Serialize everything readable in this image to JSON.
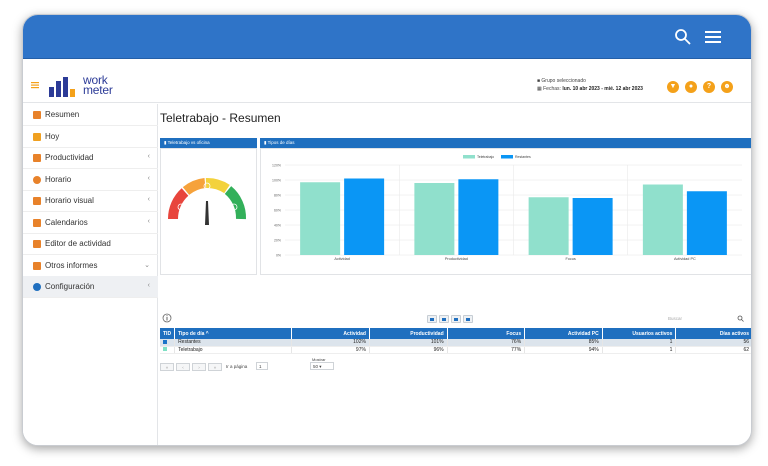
{
  "topbar": {
    "icons": [
      "search-icon",
      "menu-icon"
    ]
  },
  "app": {
    "logo_top": "work",
    "logo_bottom": "meter",
    "group_label": "Grupo seleccionado",
    "dates_label": "Fechas:",
    "dates_value": "lun. 10 abr 2023 - mié. 12 abr 2023",
    "header_icons": [
      "filter-icon",
      "bell-icon",
      "help-icon",
      "user-icon"
    ],
    "accent_color": "#f4a11a",
    "primary_color": "#1f6fbf"
  },
  "sidebar": {
    "items": [
      {
        "label": "Resumen",
        "icon": "home-icon",
        "color": "#e8822a",
        "chevron": false
      },
      {
        "label": "Hoy",
        "icon": "calendar-icon",
        "color": "#f0a020",
        "chevron": false
      },
      {
        "label": "Productividad",
        "icon": "chart-icon",
        "color": "#e8822a",
        "chevron": true
      },
      {
        "label": "Horario",
        "icon": "clock-icon",
        "color": "#e8822a",
        "chevron": true
      },
      {
        "label": "Horario visual",
        "icon": "bar-chart-icon",
        "color": "#e8822a",
        "chevron": true
      },
      {
        "label": "Calendarios",
        "icon": "calendar-icon",
        "color": "#e8822a",
        "chevron": true
      },
      {
        "label": "Editor de actividad",
        "icon": "edit-icon",
        "color": "#e8822a",
        "chevron": false
      },
      {
        "label": "Otros informes",
        "icon": "grid-icon",
        "color": "#e8822a",
        "chevron": true
      },
      {
        "label": "Configuración",
        "icon": "gear-icon",
        "color": "#1f6fbf",
        "chevron": true
      }
    ]
  },
  "page": {
    "title": "Teletrabajo - Resumen"
  },
  "gauge_panel": {
    "title": "Teletrabajo vs oficina"
  },
  "chart_data": {
    "type": "bar",
    "title": "Tipos de días",
    "categories": [
      "Actividad",
      "Productividad",
      "Focus",
      "Actividad PC"
    ],
    "series": [
      {
        "name": "Teletrabajo",
        "color": "#90e0cc",
        "values": [
          97,
          96,
          77,
          94
        ]
      },
      {
        "name": "Restantes",
        "color": "#0a96f5",
        "values": [
          102,
          101,
          76,
          85
        ]
      }
    ],
    "ylim": [
      0,
      120
    ],
    "yticks": [
      "0%",
      "20%",
      "40%",
      "60%",
      "80%",
      "100%",
      "120%"
    ],
    "grid": true,
    "legend": "top"
  },
  "table": {
    "search_placeholder": "Buscar",
    "info_icon": "info-icon",
    "columns": [
      "TID",
      "Tipo de día",
      "Actividad",
      "Productividad",
      "Focus",
      "Actividad PC",
      "Usuarios activos",
      "Días activos"
    ],
    "sort_indicator": "^",
    "rows": [
      {
        "color": "#1a73c8",
        "tipo": "Restantes",
        "actividad": "102%",
        "productividad": "101%",
        "focus": "76%",
        "actividad_pc": "85%",
        "usuarios": "1",
        "dias": "56"
      },
      {
        "color": "#7ee0c4",
        "tipo": "Teletrabajo",
        "actividad": "97%",
        "productividad": "96%",
        "focus": "77%",
        "actividad_pc": "94%",
        "usuarios": "1",
        "dias": "62"
      }
    ],
    "pager": {
      "goto_label": "Ir a página",
      "page_value": "1",
      "rows_label": "Mostrar",
      "rows_value": "50"
    }
  }
}
